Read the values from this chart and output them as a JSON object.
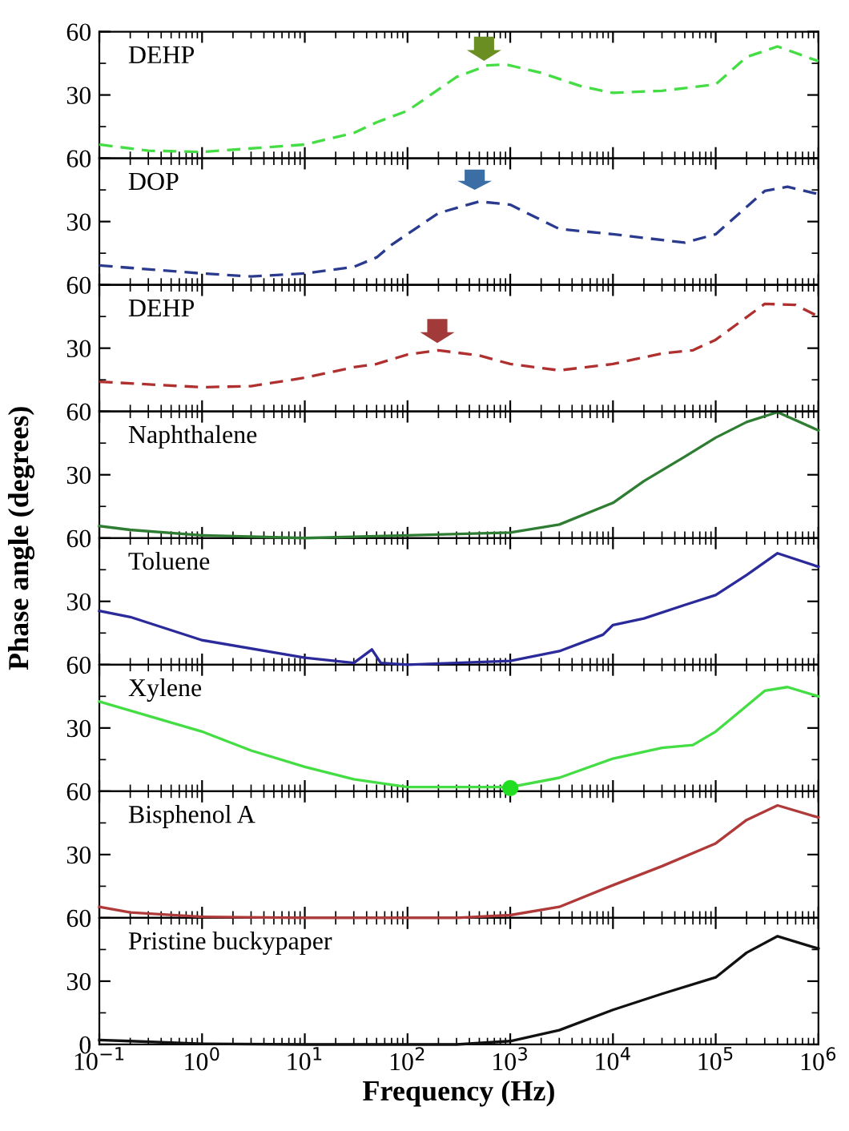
{
  "chart_data": [
    {
      "type": "line",
      "log": "x",
      "xlim": [
        0.1,
        1000000
      ],
      "ylim": [
        0,
        60
      ],
      "yticks": [
        30,
        60
      ],
      "tick_labels": "y",
      "line_style": "dashed",
      "marker": "none",
      "series": [
        {
          "name": "DEHP",
          "color": "#44dd44",
          "x": [
            0.1,
            0.3,
            1,
            10,
            30,
            50,
            100,
            300,
            600,
            900,
            2000,
            5000,
            10000,
            30000,
            100000,
            200000,
            400000,
            1000000
          ],
          "values": [
            6.5,
            3.6,
            3,
            6.5,
            12,
            17,
            22.5,
            38.5,
            44,
            44.5,
            40.5,
            34,
            31,
            32,
            35,
            48,
            53,
            46
          ]
        }
      ]
    },
    {
      "type": "line",
      "log": "x",
      "xlim": [
        0.1,
        1000000
      ],
      "ylim": [
        0,
        60
      ],
      "yticks": [
        30,
        60
      ],
      "tick_labels": "y",
      "line_style": "dashed",
      "marker": "none",
      "series": [
        {
          "name": "DOP",
          "color": "#2a3b8f",
          "x": [
            0.1,
            1,
            3,
            10,
            30,
            50,
            70,
            200,
            500,
            1000,
            3000,
            10000,
            50000,
            100000,
            300000,
            500000,
            1000000
          ],
          "values": [
            9.2,
            5.4,
            4,
            5.4,
            8.5,
            13,
            19,
            34,
            39.5,
            38,
            26.5,
            24,
            20,
            24,
            44.5,
            46.5,
            43
          ]
        }
      ]
    },
    {
      "type": "line",
      "log": "x",
      "xlim": [
        0.1,
        1000000
      ],
      "ylim": [
        0,
        60
      ],
      "yticks": [
        30,
        60
      ],
      "tick_labels": "y",
      "line_style": "dashed",
      "marker": "none",
      "series": [
        {
          "name": "DEHP",
          "color": "#b03030",
          "x": [
            0.1,
            1,
            3,
            10,
            30,
            50,
            100,
            200,
            500,
            1000,
            3000,
            10000,
            30000,
            60000,
            100000,
            300000,
            600000,
            1000000
          ],
          "values": [
            14.1,
            11.5,
            12,
            16,
            21,
            22.5,
            27,
            29,
            26.5,
            22.5,
            19.5,
            22.5,
            27.5,
            29,
            34,
            51,
            50.5,
            45
          ]
        }
      ]
    },
    {
      "type": "line",
      "log": "x",
      "xlim": [
        0.1,
        1000000
      ],
      "ylim": [
        0,
        60
      ],
      "yticks": [
        30,
        60
      ],
      "tick_labels": "y",
      "line_style": "solid",
      "marker": "none",
      "series": [
        {
          "name": "Naphthalene",
          "color": "#2e7d32",
          "x": [
            0.1,
            0.2,
            1,
            10,
            1000,
            3000,
            10000,
            20000,
            50000,
            100000,
            200000,
            400000,
            1000000
          ],
          "values": [
            5.7,
            3.9,
            1.3,
            0,
            2.6,
            6.4,
            16.7,
            27,
            38.6,
            47.6,
            55,
            59.7,
            51
          ]
        }
      ]
    },
    {
      "type": "line",
      "log": "x",
      "xlim": [
        0.1,
        1000000
      ],
      "ylim": [
        0,
        60
      ],
      "yticks": [
        30,
        60
      ],
      "tick_labels": "y",
      "line_style": "solid",
      "marker": "none",
      "ylabel": "Phase angle (degrees)",
      "series": [
        {
          "name": "Toluene",
          "color": "#2a2a9a",
          "x": [
            0.1,
            0.2,
            1,
            10,
            30,
            45,
            55,
            100,
            1000,
            3000,
            8000,
            10000,
            20000,
            50000,
            100000,
            200000,
            400000,
            1000000
          ],
          "values": [
            25.5,
            22.6,
            11.6,
            3.3,
            0.8,
            7.2,
            0.8,
            0,
            1.8,
            6.4,
            14.2,
            18.8,
            21.9,
            28.3,
            33,
            42.5,
            52.8,
            46.4
          ]
        }
      ]
    },
    {
      "type": "line",
      "log": "x",
      "xlim": [
        0.1,
        1000000
      ],
      "ylim": [
        0,
        60
      ],
      "yticks": [
        30,
        60
      ],
      "tick_labels": "y",
      "line_style": "solid",
      "marker": "none",
      "series": [
        {
          "name": "Xylene",
          "color": "#44dd44",
          "x": [
            0.1,
            1,
            3,
            10,
            30,
            100,
            1000,
            3000,
            10000,
            30000,
            60000,
            100000,
            300000,
            500000,
            1000000
          ],
          "values": [
            42.5,
            28.3,
            19.3,
            11.6,
            5.7,
            2,
            2,
            6.4,
            15.5,
            20.6,
            21.9,
            28.3,
            47.6,
            49.4,
            45
          ]
        },
        {
          "type": "scatter",
          "marker": "circle",
          "color": "#22dd22",
          "x": [
            1000
          ],
          "values": [
            1.5
          ]
        }
      ]
    },
    {
      "type": "line",
      "log": "x",
      "xlim": [
        0.1,
        1000000
      ],
      "ylim": [
        0,
        60
      ],
      "yticks": [
        30,
        60
      ],
      "tick_labels": "y",
      "line_style": "solid",
      "marker": "none",
      "series": [
        {
          "name": "Bisphenol A",
          "color": "#b03a3a",
          "x": [
            0.1,
            0.2,
            1,
            10,
            300,
            1000,
            3000,
            10000,
            30000,
            100000,
            200000,
            400000,
            1000000
          ],
          "values": [
            5.2,
            2.6,
            0.5,
            0,
            0,
            1.3,
            5.2,
            15.5,
            24.5,
            35.3,
            46.4,
            53.3,
            47.6
          ]
        }
      ]
    },
    {
      "type": "line",
      "log": "x",
      "xlim": [
        0.1,
        1000000
      ],
      "xticks": [
        {
          "value": 0.1,
          "label": "10$^{−1}$"
        },
        {
          "value": 1,
          "label": "10$^{0}$"
        },
        {
          "value": 10,
          "label": "10$^{1}$"
        },
        {
          "value": 100,
          "label": "10$^{2}$"
        },
        {
          "value": 1000,
          "label": "10$^{3}$"
        },
        {
          "value": 10000,
          "label": "10$^{4}$"
        },
        {
          "value": 100000,
          "label": "10$^{5}$"
        },
        {
          "value": 1000000,
          "label": "10$^{6}$"
        }
      ],
      "ylim": [
        0,
        60
      ],
      "yticks": [
        0,
        30,
        60
      ],
      "line_style": "solid",
      "marker": "none",
      "xlabel": "Frequency (Hz)",
      "series": [
        {
          "name": "Pristine buckypaper",
          "color": "#111111",
          "x": [
            0.1,
            0.2,
            1,
            10,
            300,
            1000,
            3000,
            10000,
            30000,
            100000,
            200000,
            400000,
            1000000
          ],
          "values": [
            2.1,
            1.6,
            0.3,
            0,
            0,
            1.6,
            6.8,
            16.4,
            24,
            31.8,
            43.5,
            51.3,
            45.4
          ]
        }
      ]
    }
  ]
}
